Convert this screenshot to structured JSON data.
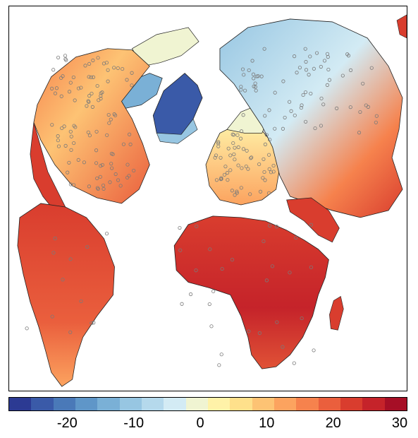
{
  "map": {
    "projection": "polar azimuthal (north-up)",
    "regions": [
      "north-america",
      "south-america",
      "europe",
      "asia",
      "africa",
      "greenland",
      "madagascar",
      "arabia",
      "japan",
      "arctic-islands"
    ],
    "markers": "open circles marking station sites",
    "marker_color": "#7a7a7a"
  },
  "colorbar": {
    "min": -30,
    "max": 30,
    "colors": [
      "#2c3a93",
      "#3a5aa8",
      "#4a79b8",
      "#5f96c8",
      "#7ab0d6",
      "#97c6e2",
      "#b5d9ec",
      "#d3ebf4",
      "#f0f4d2",
      "#fff2a8",
      "#fee08b",
      "#fdc374",
      "#fca35f",
      "#f6824d",
      "#ea5f3d",
      "#d93d2e",
      "#c5232a",
      "#a60f26"
    ],
    "tick_labels": [
      "-20",
      "-10",
      "0",
      "10",
      "20",
      "30"
    ],
    "tick_values": [
      -20,
      -10,
      0,
      10,
      20,
      30
    ]
  }
}
